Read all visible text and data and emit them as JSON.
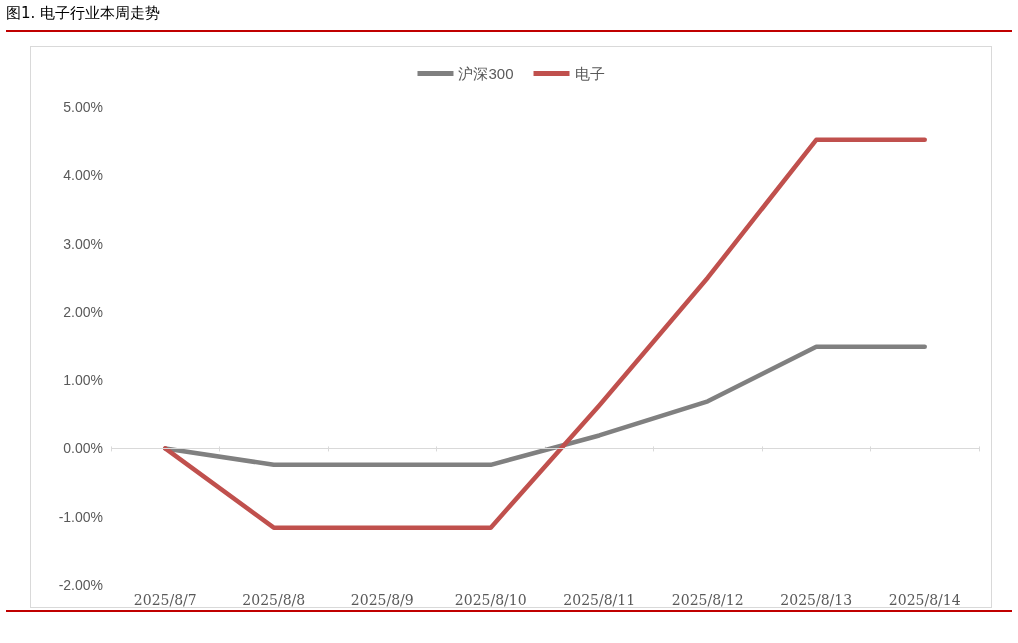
{
  "chart_data": {
    "type": "line",
    "title": "图1. 电子行业本周走势",
    "categories": [
      "2025/8/7",
      "2025/8/8",
      "2025/8/9",
      "2025/8/10",
      "2025/8/11",
      "2025/8/12",
      "2025/8/13",
      "2025/8/14"
    ],
    "series": [
      {
        "name": "沪深300",
        "color": "#808080",
        "values": [
          0,
          -0.24,
          -0.24,
          -0.24,
          0.19,
          0.69,
          1.49,
          1.49
        ]
      },
      {
        "name": "电子",
        "color": "#c0504d",
        "values": [
          0,
          -1.16,
          -1.16,
          -1.16,
          0.63,
          2.5,
          4.52,
          4.52
        ]
      }
    ],
    "ylim": [
      -2,
      5
    ],
    "yticks": [
      {
        "value": -2,
        "label": "-2.00%"
      },
      {
        "value": -1,
        "label": "-1.00%"
      },
      {
        "value": 0,
        "label": "0.00%"
      },
      {
        "value": 1,
        "label": "1.00%"
      },
      {
        "value": 2,
        "label": "2.00%"
      },
      {
        "value": 3,
        "label": "3.00%"
      },
      {
        "value": 4,
        "label": "4.00%"
      },
      {
        "value": 5,
        "label": "5.00%"
      }
    ],
    "ref_lines": [
      {
        "axis": "y",
        "value": 0,
        "color": "#d9d9d9"
      }
    ],
    "grid": false,
    "legend": "top",
    "marker": "none",
    "line_style": "solid"
  }
}
